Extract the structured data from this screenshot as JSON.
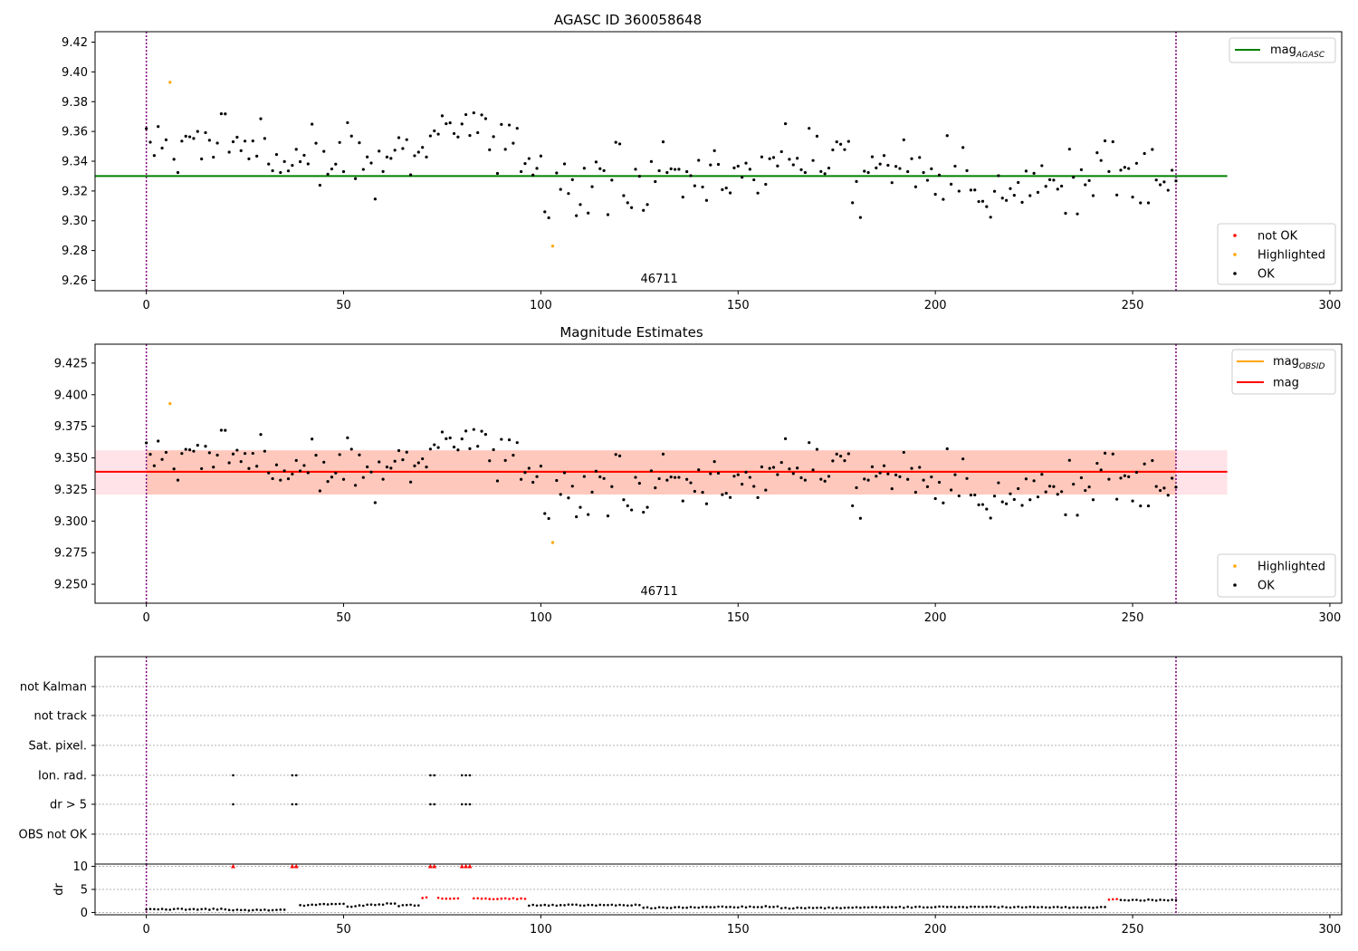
{
  "figure": {
    "background": "#ffffff"
  },
  "chart_data": [
    {
      "type": "scatter",
      "title": "AGASC ID 360058648",
      "xlim": [
        -13,
        303
      ],
      "ylim": [
        9.253,
        9.427
      ],
      "xticks": [
        "0",
        "50",
        "100",
        "150",
        "200",
        "250",
        "300"
      ],
      "yticks": [
        "9.26",
        "9.28",
        "9.30",
        "9.32",
        "9.34",
        "9.36",
        "9.38",
        "9.40",
        "9.42"
      ],
      "vlines": [
        0,
        261
      ],
      "obsid_label": "46711",
      "obsid_label_x": 130,
      "reference_line": {
        "label": "mag",
        "subscript": "AGASC",
        "value": 9.33,
        "x_range": [
          -13,
          274
        ],
        "color": "#008000"
      },
      "legend_top": "top-right",
      "legend_bottom": "bottom-right",
      "series": [
        {
          "name": "not OK",
          "color": "#ff0000",
          "marker": "dot",
          "points": []
        },
        {
          "name": "Highlighted",
          "color": "#ffa500",
          "marker": "dot",
          "points": [
            [
              6,
              9.393
            ],
            [
              103,
              9.283
            ]
          ]
        },
        {
          "name": "OK",
          "color": "#000000",
          "marker": "dot",
          "points": []
        }
      ]
    },
    {
      "type": "scatter",
      "title": "Magnitude Estimates",
      "xlim": [
        -13,
        303
      ],
      "ylim": [
        9.235,
        9.44
      ],
      "xticks": [
        "0",
        "50",
        "100",
        "150",
        "200",
        "250",
        "300"
      ],
      "yticks": [
        "9.250",
        "9.275",
        "9.300",
        "9.325",
        "9.350",
        "9.375",
        "9.400",
        "9.425"
      ],
      "vlines": [
        0,
        261
      ],
      "obsid_label": "46711",
      "obsid_label_x": 130,
      "outer_band": {
        "y": [
          9.321,
          9.356
        ],
        "x_range": [
          -13,
          274
        ],
        "color": "#ffc0cb"
      },
      "inner_band": {
        "y": [
          9.321,
          9.356
        ],
        "x_range": [
          0,
          261
        ],
        "color": "#ffa07a"
      },
      "obsid_line": {
        "label": "mag",
        "subscript": "OBSID",
        "value": 9.339,
        "x_range": [
          0,
          261
        ],
        "color": "#ffa500"
      },
      "mag_line": {
        "label": "mag",
        "value": 9.339,
        "x_range": [
          -13,
          274
        ],
        "color": "#ff0000"
      },
      "legend_top": "top-right",
      "legend_bottom": "bottom-right",
      "series": [
        {
          "name": "Highlighted",
          "color": "#ffa500",
          "marker": "dot",
          "points": [
            [
              6,
              9.393
            ],
            [
              103,
              9.283
            ]
          ]
        },
        {
          "name": "OK",
          "color": "#000000",
          "marker": "dot",
          "points": []
        }
      ]
    },
    {
      "type": "scatter",
      "title": "",
      "xlim": [
        -13,
        303
      ],
      "vlines": [
        0,
        261
      ],
      "categories": [
        "not Kalman",
        "not track",
        "Sat. pixel.",
        "Ion. rad.",
        "dr > 5",
        "OBS not OK"
      ],
      "flag_points": {
        "Ion. rad.": [
          22,
          37,
          38,
          72,
          73,
          80,
          81,
          82
        ],
        "dr > 5": [
          22,
          37,
          38,
          72,
          73,
          80,
          81,
          82
        ]
      }
    },
    {
      "type": "scatter",
      "title": "",
      "xlim": [
        -13,
        303
      ],
      "ylim": [
        -0.5,
        10.5
      ],
      "ylabel": "dr",
      "xticks": [
        "0",
        "50",
        "100",
        "150",
        "200",
        "250",
        "300"
      ],
      "yticks": [
        "0",
        "5",
        "10"
      ],
      "vlines": [
        0,
        261
      ],
      "capped_points": {
        "value": 10,
        "x": [
          22,
          37,
          38,
          72,
          73,
          80,
          81,
          82
        ],
        "color": "#ff0000"
      },
      "segments": [
        {
          "x": [
            0,
            20
          ],
          "y": [
            0.7,
            0.7
          ],
          "color": "#000000"
        },
        {
          "x": [
            21,
            35
          ],
          "y": [
            0.5,
            0.5
          ],
          "color": "#000000"
        },
        {
          "x": [
            39,
            50
          ],
          "y": [
            1.5,
            1.9
          ],
          "color": "#000000"
        },
        {
          "x": [
            51,
            63
          ],
          "y": [
            1.3,
            2.0
          ],
          "color": "#000000"
        },
        {
          "x": [
            64,
            69
          ],
          "y": [
            1.5,
            1.6
          ],
          "color": "#000000"
        },
        {
          "x": [
            70,
            71
          ],
          "y": [
            3.2,
            3.2
          ],
          "color": "#ff0000"
        },
        {
          "x": [
            74,
            79
          ],
          "y": [
            3.1,
            3.0
          ],
          "color": "#ff0000"
        },
        {
          "x": [
            83,
            96
          ],
          "y": [
            3.0,
            3.0
          ],
          "color": "#ff0000"
        },
        {
          "x": [
            97,
            125
          ],
          "y": [
            1.6,
            1.6
          ],
          "color": "#000000"
        },
        {
          "x": [
            126,
            160
          ],
          "y": [
            1.0,
            1.3
          ],
          "color": "#000000"
        },
        {
          "x": [
            161,
            200
          ],
          "y": [
            0.9,
            1.2
          ],
          "color": "#000000"
        },
        {
          "x": [
            201,
            243
          ],
          "y": [
            1.2,
            1.1
          ],
          "color": "#000000"
        },
        {
          "x": [
            244,
            246
          ],
          "y": [
            2.9,
            2.9
          ],
          "color": "#ff0000"
        },
        {
          "x": [
            247,
            261
          ],
          "y": [
            2.7,
            2.7
          ],
          "color": "#000000"
        }
      ]
    }
  ],
  "legends": {
    "top_ref": {
      "label": "mag",
      "subscript": "AGASC"
    },
    "top_points": [
      "not OK",
      "Highlighted",
      "OK"
    ],
    "mid_ref": [
      {
        "label": "mag",
        "subscript": "OBSID"
      },
      {
        "label": "mag",
        "subscript": ""
      }
    ],
    "mid_points": [
      "Highlighted",
      "OK"
    ]
  }
}
